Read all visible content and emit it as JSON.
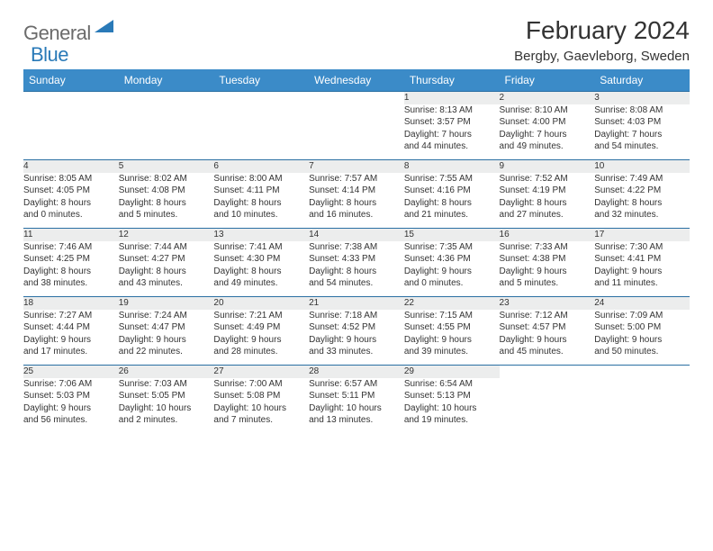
{
  "brand": {
    "g": "General",
    "b": "Blue"
  },
  "title": "February 2024",
  "location": "Bergby, Gaevleborg, Sweden",
  "colors": {
    "header_bg": "#3b8bc8",
    "row_border": "#2a6fa3",
    "daynum_bg": "#eceded",
    "text": "#333333",
    "logo_grey": "#6b6b6b",
    "logo_blue": "#2a7ab8"
  },
  "weekdays": [
    "Sunday",
    "Monday",
    "Tuesday",
    "Wednesday",
    "Thursday",
    "Friday",
    "Saturday"
  ],
  "grid": [
    [
      null,
      null,
      null,
      null,
      {
        "n": "1",
        "sr": "8:13 AM",
        "ss": "3:57 PM",
        "d1": "7 hours",
        "d2": "and 44 minutes."
      },
      {
        "n": "2",
        "sr": "8:10 AM",
        "ss": "4:00 PM",
        "d1": "7 hours",
        "d2": "and 49 minutes."
      },
      {
        "n": "3",
        "sr": "8:08 AM",
        "ss": "4:03 PM",
        "d1": "7 hours",
        "d2": "and 54 minutes."
      }
    ],
    [
      {
        "n": "4",
        "sr": "8:05 AM",
        "ss": "4:05 PM",
        "d1": "8 hours",
        "d2": "and 0 minutes."
      },
      {
        "n": "5",
        "sr": "8:02 AM",
        "ss": "4:08 PM",
        "d1": "8 hours",
        "d2": "and 5 minutes."
      },
      {
        "n": "6",
        "sr": "8:00 AM",
        "ss": "4:11 PM",
        "d1": "8 hours",
        "d2": "and 10 minutes."
      },
      {
        "n": "7",
        "sr": "7:57 AM",
        "ss": "4:14 PM",
        "d1": "8 hours",
        "d2": "and 16 minutes."
      },
      {
        "n": "8",
        "sr": "7:55 AM",
        "ss": "4:16 PM",
        "d1": "8 hours",
        "d2": "and 21 minutes."
      },
      {
        "n": "9",
        "sr": "7:52 AM",
        "ss": "4:19 PM",
        "d1": "8 hours",
        "d2": "and 27 minutes."
      },
      {
        "n": "10",
        "sr": "7:49 AM",
        "ss": "4:22 PM",
        "d1": "8 hours",
        "d2": "and 32 minutes."
      }
    ],
    [
      {
        "n": "11",
        "sr": "7:46 AM",
        "ss": "4:25 PM",
        "d1": "8 hours",
        "d2": "and 38 minutes."
      },
      {
        "n": "12",
        "sr": "7:44 AM",
        "ss": "4:27 PM",
        "d1": "8 hours",
        "d2": "and 43 minutes."
      },
      {
        "n": "13",
        "sr": "7:41 AM",
        "ss": "4:30 PM",
        "d1": "8 hours",
        "d2": "and 49 minutes."
      },
      {
        "n": "14",
        "sr": "7:38 AM",
        "ss": "4:33 PM",
        "d1": "8 hours",
        "d2": "and 54 minutes."
      },
      {
        "n": "15",
        "sr": "7:35 AM",
        "ss": "4:36 PM",
        "d1": "9 hours",
        "d2": "and 0 minutes."
      },
      {
        "n": "16",
        "sr": "7:33 AM",
        "ss": "4:38 PM",
        "d1": "9 hours",
        "d2": "and 5 minutes."
      },
      {
        "n": "17",
        "sr": "7:30 AM",
        "ss": "4:41 PM",
        "d1": "9 hours",
        "d2": "and 11 minutes."
      }
    ],
    [
      {
        "n": "18",
        "sr": "7:27 AM",
        "ss": "4:44 PM",
        "d1": "9 hours",
        "d2": "and 17 minutes."
      },
      {
        "n": "19",
        "sr": "7:24 AM",
        "ss": "4:47 PM",
        "d1": "9 hours",
        "d2": "and 22 minutes."
      },
      {
        "n": "20",
        "sr": "7:21 AM",
        "ss": "4:49 PM",
        "d1": "9 hours",
        "d2": "and 28 minutes."
      },
      {
        "n": "21",
        "sr": "7:18 AM",
        "ss": "4:52 PM",
        "d1": "9 hours",
        "d2": "and 33 minutes."
      },
      {
        "n": "22",
        "sr": "7:15 AM",
        "ss": "4:55 PM",
        "d1": "9 hours",
        "d2": "and 39 minutes."
      },
      {
        "n": "23",
        "sr": "7:12 AM",
        "ss": "4:57 PM",
        "d1": "9 hours",
        "d2": "and 45 minutes."
      },
      {
        "n": "24",
        "sr": "7:09 AM",
        "ss": "5:00 PM",
        "d1": "9 hours",
        "d2": "and 50 minutes."
      }
    ],
    [
      {
        "n": "25",
        "sr": "7:06 AM",
        "ss": "5:03 PM",
        "d1": "9 hours",
        "d2": "and 56 minutes."
      },
      {
        "n": "26",
        "sr": "7:03 AM",
        "ss": "5:05 PM",
        "d1": "10 hours",
        "d2": "and 2 minutes."
      },
      {
        "n": "27",
        "sr": "7:00 AM",
        "ss": "5:08 PM",
        "d1": "10 hours",
        "d2": "and 7 minutes."
      },
      {
        "n": "28",
        "sr": "6:57 AM",
        "ss": "5:11 PM",
        "d1": "10 hours",
        "d2": "and 13 minutes."
      },
      {
        "n": "29",
        "sr": "6:54 AM",
        "ss": "5:13 PM",
        "d1": "10 hours",
        "d2": "and 19 minutes."
      },
      null,
      null
    ]
  ]
}
